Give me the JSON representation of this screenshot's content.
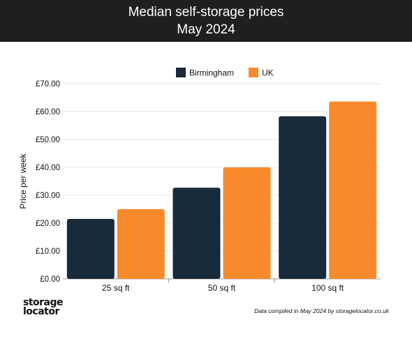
{
  "header": {
    "title_line1": "Median self-storage prices",
    "title_line2": "May 2024"
  },
  "footer": {
    "brand_line1": "storage",
    "brand_line2": "locator",
    "credit": "Data compiled in May 2024 by storagelocator.co.uk"
  },
  "chart_data": {
    "type": "bar",
    "title": "Median self-storage prices May 2024",
    "ylabel": "Price per week",
    "xlabel": "",
    "categories": [
      "25 sq ft",
      "50 sq ft",
      "100 sq ft"
    ],
    "series": [
      {
        "name": "Birmingham",
        "values": [
          21.5,
          32.7,
          58.3
        ],
        "color": "#172b3a"
      },
      {
        "name": "UK",
        "values": [
          25.0,
          40.0,
          63.6
        ],
        "color": "#f98a2c"
      }
    ],
    "ylim": [
      0,
      70
    ],
    "yticks": [
      0,
      10,
      20,
      30,
      40,
      50,
      60,
      70
    ],
    "ytick_labels": [
      "£0.00",
      "£10.00",
      "£20.00",
      "£30.00",
      "£40.00",
      "£50.00",
      "£60.00",
      "£70.00"
    ],
    "grid": true,
    "legend_position": "top"
  }
}
